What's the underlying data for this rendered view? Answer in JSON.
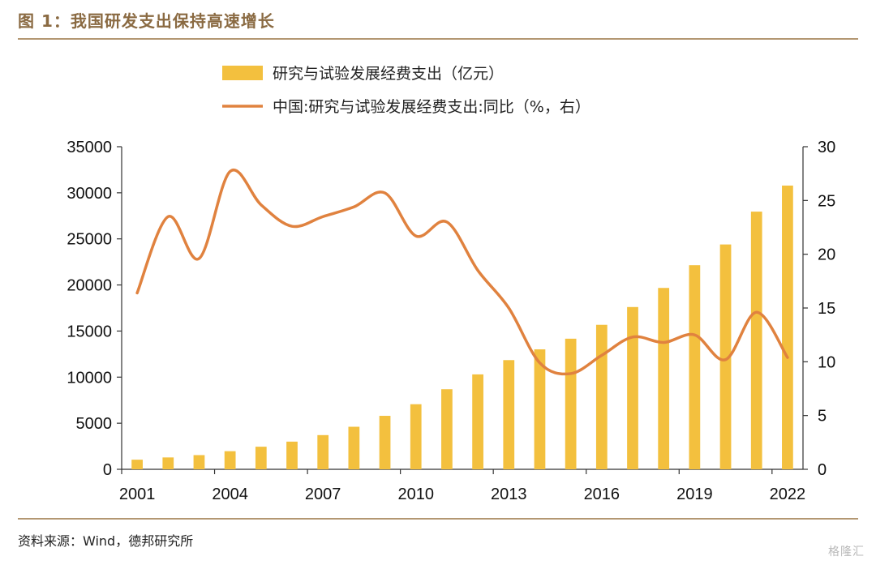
{
  "header": {
    "title": "图 1：我国研发支出保持高速增长"
  },
  "footer": {
    "source": "资料来源：Wind，德邦研究所",
    "watermark": "格隆汇"
  },
  "colors": {
    "bar": "#f3c03e",
    "line": "#e0823f",
    "rule": "#b39772",
    "title": "#8a6a42"
  },
  "chart_data": {
    "type": "bar",
    "title": "",
    "x": [
      2001,
      2002,
      2003,
      2004,
      2005,
      2006,
      2007,
      2008,
      2009,
      2010,
      2011,
      2012,
      2013,
      2014,
      2015,
      2016,
      2017,
      2018,
      2019,
      2020,
      2021,
      2022
    ],
    "x_tick_labels": [
      "2001",
      "2004",
      "2007",
      "2010",
      "2013",
      "2016",
      "2019",
      "2022"
    ],
    "y_left": {
      "lim": [
        0,
        35000
      ],
      "ticks": [
        0,
        5000,
        10000,
        15000,
        20000,
        25000,
        30000,
        35000
      ]
    },
    "y_right": {
      "lim": [
        0,
        30
      ],
      "ticks": [
        0,
        5,
        10,
        15,
        20,
        25,
        30
      ]
    },
    "series": [
      {
        "name": "研究与试验发展经费支出（亿元）",
        "type": "bar",
        "axis": "left",
        "values": [
          1043,
          1288,
          1540,
          1966,
          2450,
          3003,
          3710,
          4616,
          5802,
          7063,
          8687,
          10298,
          11847,
          13016,
          14170,
          15677,
          17606,
          19678,
          22144,
          24393,
          27956,
          30783
        ]
      },
      {
        "name": "中国:研究与试验发展经费支出:同比（%，右）",
        "type": "line",
        "axis": "right",
        "values": [
          16.4,
          23.5,
          19.6,
          27.7,
          24.6,
          22.6,
          23.5,
          24.4,
          25.7,
          21.7,
          23.0,
          18.5,
          15.0,
          9.9,
          8.9,
          10.6,
          12.3,
          11.8,
          12.5,
          10.2,
          14.6,
          10.4
        ]
      }
    ],
    "legend": "top-center",
    "grid": false
  }
}
